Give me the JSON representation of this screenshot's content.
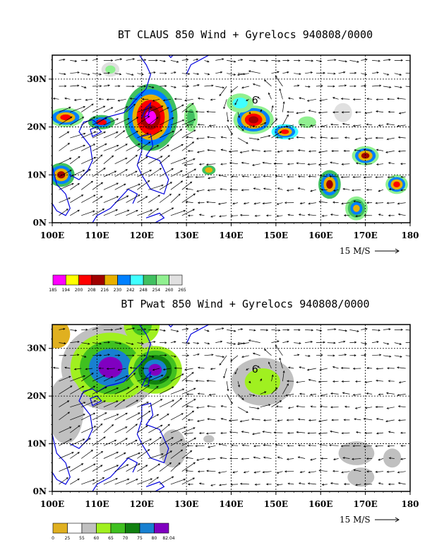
{
  "charts": [
    {
      "title": "BT CLAUS 850 Wind + Gyrelocs 940808/0000",
      "x_ticks": [
        "100E",
        "110E",
        "120E",
        "130E",
        "140E",
        "150E",
        "160E",
        "170E",
        "180"
      ],
      "y_ticks": [
        "0N",
        "10N",
        "20N",
        "30N"
      ],
      "scale_label": "15 M/S",
      "cyclone_symbol": "6",
      "colorbar_labels": [
        "185",
        "194",
        "200",
        "208",
        "216",
        "230",
        "242",
        "248",
        "254",
        "260",
        "265"
      ],
      "colorbar_colors": [
        "#ff00ff",
        "#ffff00",
        "#ff0000",
        "#a00000",
        "#e8b000",
        "#0080ff",
        "#40ffff",
        "#40c060",
        "#90f090",
        "#e0e0e0"
      ]
    },
    {
      "title": "BT Pwat 850 Wind + Gyrelocs 940808/0000",
      "x_ticks": [
        "100E",
        "110E",
        "120E",
        "130E",
        "140E",
        "150E",
        "160E",
        "170E",
        "180"
      ],
      "y_ticks": [
        "0N",
        "10N",
        "20N",
        "30N"
      ],
      "scale_label": "15 M/S",
      "cyclone_symbol": "6",
      "colorbar_labels": [
        "0",
        "25",
        "55",
        "60",
        "65",
        "70",
        "75",
        "80",
        "82.04"
      ],
      "colorbar_colors": [
        "#e0b020",
        "#ffffff",
        "#c0c0c0",
        "#a0f020",
        "#40c020",
        "#108010",
        "#1880d0",
        "#8000c0"
      ]
    }
  ],
  "chart_data": [
    {
      "type": "heatmap",
      "title": "BT CLAUS 850 Wind + Gyrelocs 940808/0000",
      "x_range": [
        100,
        180
      ],
      "y_range": [
        0,
        35
      ],
      "x_ticks": [
        100,
        110,
        120,
        130,
        140,
        150,
        160,
        170,
        180
      ],
      "y_ticks": [
        0,
        10,
        20,
        30
      ],
      "variable": "Brightness temperature (CLAUS)",
      "levels": [
        185,
        194,
        200,
        208,
        216,
        230,
        242,
        248,
        254,
        260,
        265
      ],
      "overlay": "850 hPa wind vectors",
      "reference_vector": "15 M/S",
      "cyclone_location": {
        "lon": 145,
        "lat": 24
      },
      "grid": true
    },
    {
      "type": "heatmap",
      "title": "BT Pwat 850 Wind + Gyrelocs 940808/0000",
      "x_range": [
        100,
        180
      ],
      "y_range": [
        0,
        35
      ],
      "x_ticks": [
        100,
        110,
        120,
        130,
        140,
        150,
        160,
        170,
        180
      ],
      "y_ticks": [
        0,
        10,
        20,
        30
      ],
      "variable": "Precipitable water",
      "levels": [
        0,
        25,
        55,
        60,
        65,
        70,
        75,
        80,
        82.04
      ],
      "overlay": "850 hPa wind vectors",
      "reference_vector": "15 M/S",
      "cyclone_location": {
        "lon": 145,
        "lat": 24
      },
      "grid": true
    }
  ]
}
